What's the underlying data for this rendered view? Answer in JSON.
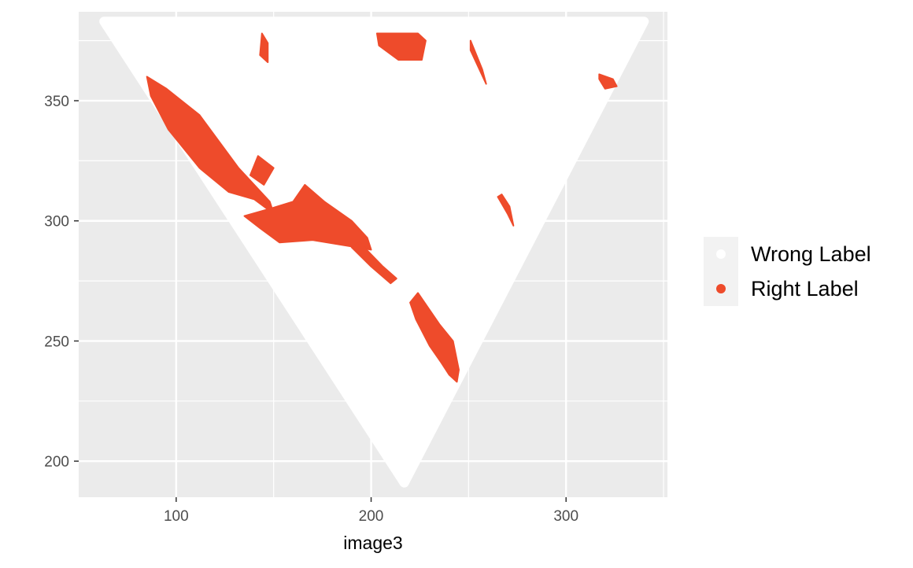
{
  "chart_data": {
    "type": "scatter",
    "title": "",
    "xlabel": "image3",
    "ylabel": "",
    "xlim": [
      50,
      352
    ],
    "ylim": [
      185,
      387
    ],
    "x_ticks": [
      100,
      200,
      300
    ],
    "y_ticks": [
      200,
      250,
      300,
      350
    ],
    "x_tick_labels": [
      "100",
      "200",
      "300"
    ],
    "y_tick_labels": [
      "200",
      "250",
      "300",
      "350"
    ],
    "grid": true,
    "background": "#EBEBEB",
    "legend": {
      "position": "right",
      "entries": [
        {
          "label": "Wrong Label",
          "color": "#FFFFFF"
        },
        {
          "label": "Right Label",
          "color": "#EE4B2B"
        }
      ]
    },
    "series": [
      {
        "name": "Wrong Label",
        "color": "#FFFFFF",
        "region": "triangle",
        "vertices": [
          [
            63,
            383
          ],
          [
            340,
            383
          ],
          [
            217,
            191
          ]
        ]
      },
      {
        "name": "Right Label",
        "color": "#EE4B2B",
        "clusters": [
          {
            "points": [
              [
                85,
                360
              ],
              [
                95,
                355
              ],
              [
                112,
                344
              ],
              [
                122,
                333
              ],
              [
                132,
                322
              ],
              [
                148,
                308
              ],
              [
                150,
                303
              ],
              [
                140,
                309
              ],
              [
                127,
                312
              ],
              [
                112,
                322
              ],
              [
                96,
                338
              ],
              [
                87,
                352
              ]
            ]
          },
          {
            "points": [
              [
                142,
                327
              ],
              [
                150,
                322
              ],
              [
                145,
                315
              ],
              [
                138,
                319
              ]
            ]
          },
          {
            "points": [
              [
                166,
                315
              ],
              [
                176,
                308
              ],
              [
                190,
                300
              ],
              [
                198,
                293
              ],
              [
                200,
                288
              ],
              [
                185,
                290
              ],
              [
                170,
                292
              ],
              [
                153,
                291
              ],
              [
                143,
                297
              ],
              [
                135,
                302
              ],
              [
                148,
                305
              ],
              [
                160,
                308
              ]
            ]
          },
          {
            "points": [
              [
                194,
                291
              ],
              [
                206,
                281
              ],
              [
                213,
                276
              ],
              [
                210,
                274
              ],
              [
                200,
                281
              ],
              [
                190,
                289
              ]
            ]
          },
          {
            "points": [
              [
                224,
                270
              ],
              [
                235,
                257
              ],
              [
                242,
                250
              ],
              [
                245,
                238
              ],
              [
                244,
                233
              ],
              [
                240,
                236
              ],
              [
                236,
                241
              ],
              [
                230,
                248
              ],
              [
                223,
                259
              ],
              [
                220,
                266
              ]
            ]
          },
          {
            "points": [
              [
                144,
                378
              ],
              [
                147,
                374
              ],
              [
                147,
                366
              ],
              [
                143,
                369
              ]
            ]
          },
          {
            "points": [
              [
                203,
                378
              ],
              [
                212,
                378
              ],
              [
                224,
                378
              ],
              [
                228,
                375
              ],
              [
                226,
                367
              ],
              [
                214,
                367
              ],
              [
                204,
                373
              ]
            ]
          },
          {
            "points": [
              [
                251,
                375
              ],
              [
                257,
                363
              ],
              [
                259,
                357
              ],
              [
                255,
                364
              ],
              [
                251,
                371
              ]
            ]
          },
          {
            "points": [
              [
                265,
                310
              ],
              [
                270,
                303
              ],
              [
                273,
                298
              ],
              [
                271,
                306
              ],
              [
                267,
                311
              ]
            ]
          },
          {
            "points": [
              [
                317,
                361
              ],
              [
                324,
                359
              ],
              [
                326,
                356
              ],
              [
                320,
                355
              ],
              [
                317,
                359
              ]
            ]
          }
        ]
      }
    ]
  }
}
